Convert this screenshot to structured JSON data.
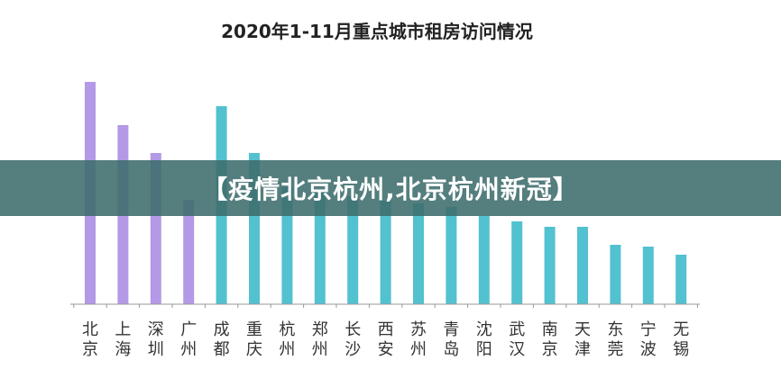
{
  "chart_data": {
    "type": "bar",
    "title": "2020年1-11月重点城市租房访问情况",
    "xlabel": "",
    "ylabel": "",
    "grid": false,
    "ylim": [
      0,
      250
    ],
    "categories": [
      "北京",
      "上海",
      "深圳",
      "广州",
      "成都",
      "重庆",
      "杭州",
      "郑州",
      "长沙",
      "西安",
      "苏州",
      "青岛",
      "沈阳",
      "武汉",
      "南京",
      "天津",
      "东莞",
      "宁波",
      "无锡"
    ],
    "values": [
      247,
      199,
      168,
      116,
      220,
      168,
      130,
      125,
      120,
      115,
      112,
      108,
      98,
      92,
      86,
      86,
      66,
      64,
      55
    ],
    "group_colors": {
      "first_tier": "#b399e6",
      "other": "#52c1d0"
    },
    "first_tier_count": 4
  },
  "banner": {
    "text": "【疫情北京杭州,北京杭州新冠】"
  }
}
